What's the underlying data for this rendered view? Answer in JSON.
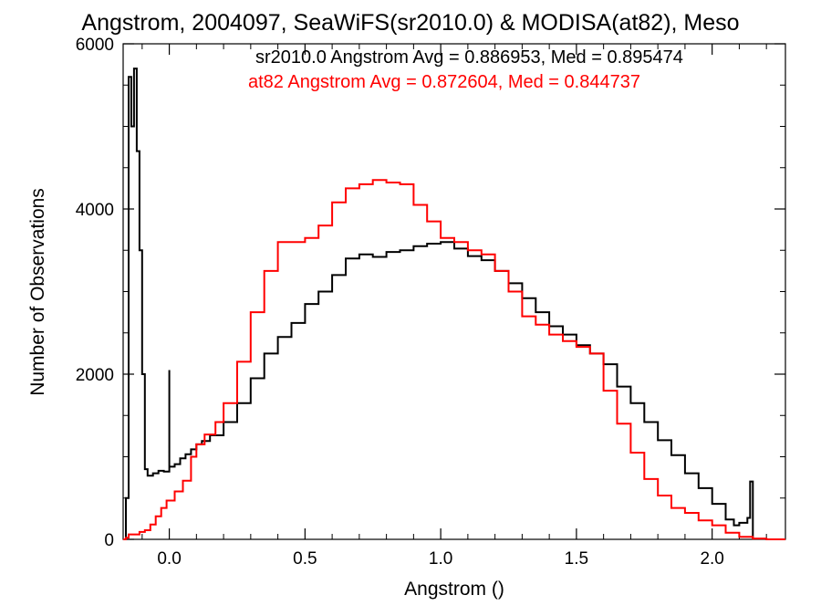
{
  "chart_data": {
    "type": "line",
    "title": "Angstrom, 2004097, SeaWiFS(sr2010.0) & MODISA(at82), Meso",
    "xlabel": "Angstrom ()",
    "ylabel": "Number of Observations",
    "xlim": [
      -0.17,
      2.27
    ],
    "ylim": [
      0,
      6000
    ],
    "x_ticks": [
      0.0,
      0.5,
      1.0,
      1.5,
      2.0
    ],
    "x_tick_labels": [
      "0.0",
      "0.5",
      "1.0",
      "1.5",
      "2.0"
    ],
    "y_ticks": [
      0,
      2000,
      4000,
      6000
    ],
    "y_tick_labels": [
      "0",
      "2000",
      "4000",
      "6000"
    ],
    "grid": false,
    "step": true,
    "annotations": [
      {
        "text": "sr2010.0 Angstrom Avg = 0.886953, Med = 0.895474",
        "color": "#000000"
      },
      {
        "text": "at82 Angstrom Avg = 0.872604, Med = 0.844737",
        "color": "#ff0000"
      }
    ],
    "series": [
      {
        "color": "#000000",
        "points": [
          [
            -0.17,
            0
          ],
          [
            -0.16,
            500
          ],
          [
            -0.15,
            5600
          ],
          [
            -0.14,
            5000
          ],
          [
            -0.13,
            5700
          ],
          [
            -0.12,
            4700
          ],
          [
            -0.11,
            3500
          ],
          [
            -0.1,
            2000
          ],
          [
            -0.09,
            850
          ],
          [
            -0.08,
            770
          ],
          [
            -0.06,
            800
          ],
          [
            -0.04,
            830
          ],
          [
            -0.02,
            820
          ],
          [
            0.0,
            2050
          ],
          [
            0.0,
            880
          ],
          [
            0.02,
            910
          ],
          [
            0.04,
            980
          ],
          [
            0.06,
            1030
          ],
          [
            0.08,
            1090
          ],
          [
            0.1,
            1150
          ],
          [
            0.12,
            1190
          ],
          [
            0.15,
            1260
          ],
          [
            0.2,
            1420
          ],
          [
            0.25,
            1650
          ],
          [
            0.3,
            1950
          ],
          [
            0.35,
            2250
          ],
          [
            0.4,
            2450
          ],
          [
            0.45,
            2620
          ],
          [
            0.5,
            2850
          ],
          [
            0.55,
            3000
          ],
          [
            0.6,
            3200
          ],
          [
            0.65,
            3400
          ],
          [
            0.7,
            3450
          ],
          [
            0.75,
            3420
          ],
          [
            0.8,
            3480
          ],
          [
            0.85,
            3500
          ],
          [
            0.9,
            3550
          ],
          [
            0.95,
            3580
          ],
          [
            1.0,
            3600
          ],
          [
            1.05,
            3520
          ],
          [
            1.1,
            3430
          ],
          [
            1.15,
            3380
          ],
          [
            1.2,
            3250
          ],
          [
            1.25,
            3100
          ],
          [
            1.3,
            2920
          ],
          [
            1.35,
            2750
          ],
          [
            1.4,
            2580
          ],
          [
            1.45,
            2480
          ],
          [
            1.5,
            2350
          ],
          [
            1.55,
            2250
          ],
          [
            1.6,
            2120
          ],
          [
            1.65,
            1850
          ],
          [
            1.7,
            1650
          ],
          [
            1.75,
            1420
          ],
          [
            1.8,
            1200
          ],
          [
            1.85,
            1020
          ],
          [
            1.9,
            800
          ],
          [
            1.95,
            620
          ],
          [
            2.0,
            430
          ],
          [
            2.05,
            240
          ],
          [
            2.08,
            170
          ],
          [
            2.1,
            200
          ],
          [
            2.13,
            260
          ],
          [
            2.14,
            700
          ],
          [
            2.15,
            0
          ]
        ]
      },
      {
        "color": "#ff0000",
        "points": [
          [
            -0.17,
            0
          ],
          [
            -0.16,
            20
          ],
          [
            -0.15,
            60
          ],
          [
            -0.13,
            60
          ],
          [
            -0.11,
            90
          ],
          [
            -0.09,
            110
          ],
          [
            -0.07,
            180
          ],
          [
            -0.05,
            280
          ],
          [
            -0.03,
            380
          ],
          [
            -0.01,
            470
          ],
          [
            0.02,
            580
          ],
          [
            0.05,
            710
          ],
          [
            0.08,
            1000
          ],
          [
            0.1,
            1150
          ],
          [
            0.13,
            1270
          ],
          [
            0.17,
            1420
          ],
          [
            0.2,
            1650
          ],
          [
            0.25,
            2150
          ],
          [
            0.3,
            2750
          ],
          [
            0.35,
            3250
          ],
          [
            0.4,
            3600
          ],
          [
            0.45,
            3600
          ],
          [
            0.5,
            3650
          ],
          [
            0.55,
            3800
          ],
          [
            0.6,
            4080
          ],
          [
            0.65,
            4250
          ],
          [
            0.7,
            4300
          ],
          [
            0.75,
            4350
          ],
          [
            0.8,
            4320
          ],
          [
            0.85,
            4300
          ],
          [
            0.9,
            4050
          ],
          [
            0.95,
            3850
          ],
          [
            1.0,
            3650
          ],
          [
            1.05,
            3600
          ],
          [
            1.1,
            3500
          ],
          [
            1.15,
            3450
          ],
          [
            1.2,
            3250
          ],
          [
            1.25,
            3000
          ],
          [
            1.3,
            2700
          ],
          [
            1.35,
            2600
          ],
          [
            1.4,
            2480
          ],
          [
            1.45,
            2400
          ],
          [
            1.5,
            2330
          ],
          [
            1.55,
            2250
          ],
          [
            1.6,
            1800
          ],
          [
            1.65,
            1400
          ],
          [
            1.7,
            1050
          ],
          [
            1.75,
            730
          ],
          [
            1.8,
            530
          ],
          [
            1.85,
            380
          ],
          [
            1.9,
            320
          ],
          [
            1.95,
            230
          ],
          [
            2.0,
            170
          ],
          [
            2.05,
            80
          ],
          [
            2.1,
            30
          ],
          [
            2.15,
            10
          ],
          [
            2.2,
            0
          ],
          [
            2.27,
            0
          ]
        ]
      }
    ]
  }
}
